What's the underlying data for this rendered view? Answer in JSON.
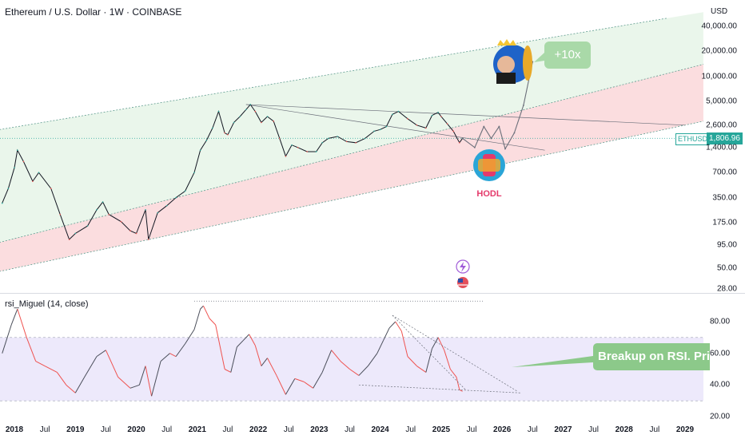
{
  "header": {
    "title": "Ethereum / U.S. Dollar · 1W · COINBASE",
    "currency": "USD",
    "indicator_title": "rsi_Miguel (14, close)"
  },
  "badges": {
    "symbol": "ETHUSD",
    "last_price": "1,806.96"
  },
  "annotations": {
    "callout_10x": "+10x",
    "rsi_callout": "Breakup on RSI. Pric",
    "hodl_label": "HODL"
  },
  "icons": [
    "crown-icon",
    "rocket-icon",
    "lightning-icon",
    "us-flag-icon"
  ],
  "colors": {
    "up_candle": "#26a69a",
    "down_candle": "#ef5350",
    "price_line": "#131722",
    "green_zone": "#e8f5e9",
    "red_zone": "#fbd9dc",
    "rsi_band": "#ede9fb",
    "callout": "#a9d9a8"
  },
  "chart_data": [
    {
      "type": "line",
      "title": "Ethereum / U.S. Dollar · 1W · COINBASE",
      "y_scale": "log",
      "y_ticks": [
        "40,000.00",
        "20,000.00",
        "10,000.00",
        "5,000.00",
        "2,600.00",
        "1,400.00",
        "700.00",
        "350.00",
        "175.00",
        "95.00",
        "50.00",
        "28.00"
      ],
      "y_tick_values": [
        40000,
        20000,
        10000,
        5000,
        2600,
        1400,
        700,
        350,
        175,
        95,
        50,
        28
      ],
      "x_ticks": [
        "2018",
        "Jul",
        "2019",
        "Jul",
        "2020",
        "Jul",
        "2021",
        "Jul",
        "2022",
        "Jul",
        "2023",
        "Jul",
        "2024",
        "Jul",
        "2025",
        "Jul",
        "2026",
        "Jul",
        "2027",
        "Jul",
        "2028",
        "Jul",
        "2029"
      ],
      "x_ticks_bold": [
        true,
        false,
        true,
        false,
        true,
        false,
        true,
        false,
        true,
        false,
        true,
        false,
        true,
        false,
        true,
        false,
        true,
        false,
        true,
        false,
        true,
        false,
        true
      ],
      "x_tick_dates": [
        2018.0,
        2018.5,
        2019.0,
        2019.5,
        2020.0,
        2020.5,
        2021.0,
        2021.5,
        2022.0,
        2022.5,
        2023.0,
        2023.5,
        2024.0,
        2024.5,
        2025.0,
        2025.5,
        2026.0,
        2026.5,
        2027.0,
        2027.5,
        2028.0,
        2028.5,
        2029.0
      ],
      "series": [
        {
          "name": "ETHUSD",
          "x": [
            2017.8,
            2017.9,
            2018.0,
            2018.05,
            2018.15,
            2018.3,
            2018.4,
            2018.6,
            2018.75,
            2018.9,
            2019.0,
            2019.2,
            2019.35,
            2019.45,
            2019.55,
            2019.75,
            2019.9,
            2020.0,
            2020.15,
            2020.2,
            2020.35,
            2020.5,
            2020.65,
            2020.8,
            2020.95,
            2021.05,
            2021.15,
            2021.25,
            2021.35,
            2021.45,
            2021.5,
            2021.6,
            2021.7,
            2021.8,
            2021.87,
            2021.95,
            2022.05,
            2022.15,
            2022.25,
            2022.35,
            2022.45,
            2022.55,
            2022.65,
            2022.8,
            2022.95,
            2023.05,
            2023.15,
            2023.3,
            2023.45,
            2023.6,
            2023.75,
            2023.9,
            2024.0,
            2024.1,
            2024.2,
            2024.3,
            2024.45,
            2024.6,
            2024.75,
            2024.85,
            2024.95,
            2025.0,
            2025.1,
            2025.2,
            2025.3,
            2025.35
          ],
          "values": [
            300,
            450,
            800,
            1300,
            950,
            550,
            700,
            450,
            220,
            110,
            130,
            160,
            250,
            310,
            220,
            180,
            140,
            130,
            250,
            110,
            230,
            280,
            350,
            420,
            700,
            1300,
            1700,
            2400,
            3800,
            2100,
            2000,
            2800,
            3300,
            4000,
            4600,
            3800,
            2800,
            3300,
            2900,
            1800,
            1100,
            1500,
            1400,
            1250,
            1250,
            1600,
            1800,
            1900,
            1650,
            1600,
            1800,
            2200,
            2300,
            2500,
            3500,
            3800,
            3100,
            2600,
            2400,
            3400,
            3700,
            3300,
            2700,
            2200,
            1600,
            1806.96
          ]
        },
        {
          "name": "Projection",
          "x": [
            2025.35,
            2025.55,
            2025.7,
            2025.82,
            2025.95,
            2026.05,
            2026.2,
            2026.35,
            2026.5
          ],
          "values": [
            1806.96,
            1400,
            2500,
            1800,
            2500,
            1350,
            2100,
            4500,
            15000
          ]
        }
      ],
      "channel": {
        "upper_line": {
          "x": [
            2017.6,
            2028.7
          ],
          "values": [
            2200,
            50000
          ]
        },
        "middle_line": {
          "x": [
            2017.6,
            2029.3
          ],
          "values": [
            95,
            14000
          ]
        },
        "lower_line": {
          "x": [
            2017.6,
            2029.3
          ],
          "values": [
            43,
            2900
          ]
        }
      },
      "horizontal_level": 1806.96
    },
    {
      "type": "line",
      "title": "rsi_Miguel (14, close)",
      "ylim": [
        20,
        95
      ],
      "y_ticks": [
        "80.00",
        "60.00",
        "40.00",
        "20.00"
      ],
      "y_tick_values": [
        80,
        60,
        40,
        20
      ],
      "band": [
        30,
        70
      ],
      "series": [
        {
          "name": "rsi_Miguel",
          "x": [
            2017.8,
            2017.95,
            2018.05,
            2018.2,
            2018.35,
            2018.5,
            2018.7,
            2018.85,
            2019.0,
            2019.15,
            2019.35,
            2019.5,
            2019.7,
            2019.9,
            2020.05,
            2020.15,
            2020.25,
            2020.4,
            2020.55,
            2020.65,
            2020.8,
            2020.95,
            2021.05,
            2021.1,
            2021.2,
            2021.3,
            2021.45,
            2021.55,
            2021.65,
            2021.75,
            2021.85,
            2021.95,
            2022.05,
            2022.15,
            2022.3,
            2022.45,
            2022.6,
            2022.75,
            2022.9,
            2023.05,
            2023.2,
            2023.35,
            2023.5,
            2023.65,
            2023.8,
            2023.95,
            2024.05,
            2024.15,
            2024.25,
            2024.35,
            2024.45,
            2024.6,
            2024.75,
            2024.85,
            2024.95,
            2025.05,
            2025.15,
            2025.25,
            2025.3,
            2025.35
          ],
          "values": [
            60,
            78,
            88,
            70,
            55,
            52,
            48,
            40,
            35,
            45,
            58,
            62,
            45,
            38,
            40,
            52,
            33,
            55,
            60,
            58,
            66,
            75,
            88,
            90,
            82,
            78,
            50,
            48,
            64,
            68,
            72,
            65,
            52,
            57,
            46,
            34,
            44,
            42,
            38,
            48,
            62,
            55,
            50,
            46,
            52,
            60,
            68,
            76,
            80,
            74,
            58,
            52,
            48,
            63,
            70,
            62,
            50,
            45,
            37,
            36
          ]
        }
      ],
      "trendlines": [
        {
          "x": [
            2024.2,
            2025.4
          ],
          "values": [
            84,
            37
          ]
        },
        {
          "x": [
            2024.2,
            2026.25
          ],
          "values": [
            84,
            36
          ]
        },
        {
          "x": [
            2023.65,
            2026.3
          ],
          "values": [
            40,
            35
          ]
        },
        {
          "x": [
            2020.95,
            2025.7
          ],
          "values": [
            93,
            93
          ]
        }
      ]
    }
  ]
}
